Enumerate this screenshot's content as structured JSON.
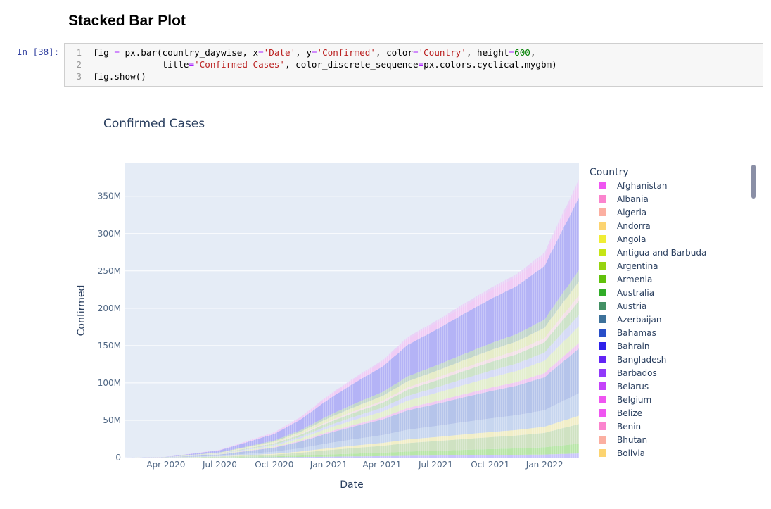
{
  "section_heading": "Stacked Bar Plot",
  "cell": {
    "prompt": "In [38]:",
    "line_numbers": [
      "1",
      "2",
      "3"
    ],
    "code": {
      "l1_a": "fig ",
      "l1_eq": "=",
      "l1_b": " px.bar(country_daywise, x",
      "l1_eq2": "=",
      "l1_s1": "'Date'",
      "l1_c": ", y",
      "l1_eq3": "=",
      "l1_s2": "'Confirmed'",
      "l1_d": ", color",
      "l1_eq4": "=",
      "l1_s3": "'Country'",
      "l1_e": ", height",
      "l1_eq5": "=",
      "l1_n": "600",
      "l1_f": ",",
      "l2_a": "             title",
      "l2_eq": "=",
      "l2_s": "'Confirmed Cases'",
      "l2_b": ", color_discrete_sequence",
      "l2_eq2": "=",
      "l2_c": "px.colors.cyclical.mygbm)",
      "l3": "fig.show()"
    }
  },
  "chart_data": {
    "type": "area",
    "title": "Confirmed Cases",
    "xlabel": "Date",
    "ylabel": "Confirmed",
    "ylim": [
      0,
      395000000
    ],
    "yticks": [
      {
        "value": 0,
        "label": "0"
      },
      {
        "value": 50000000,
        "label": "50M"
      },
      {
        "value": 100000000,
        "label": "100M"
      },
      {
        "value": 150000000,
        "label": "150M"
      },
      {
        "value": 200000000,
        "label": "200M"
      },
      {
        "value": 250000000,
        "label": "250M"
      },
      {
        "value": 300000000,
        "label": "300M"
      },
      {
        "value": 350000000,
        "label": "350M"
      }
    ],
    "xrange": [
      "2020-01-22",
      "2022-02-28"
    ],
    "xticks": [
      {
        "date": "2020-04-01",
        "label": "Apr 2020"
      },
      {
        "date": "2020-07-01",
        "label": "Jul 2020"
      },
      {
        "date": "2020-10-01",
        "label": "Oct 2020"
      },
      {
        "date": "2021-01-01",
        "label": "Jan 2021"
      },
      {
        "date": "2021-04-01",
        "label": "Apr 2021"
      },
      {
        "date": "2021-07-01",
        "label": "Jul 2021"
      },
      {
        "date": "2021-10-01",
        "label": "Oct 2021"
      },
      {
        "date": "2022-01-01",
        "label": "Jan 2022"
      }
    ],
    "x": [
      "2020-01-22",
      "2020-04-01",
      "2020-07-01",
      "2020-10-01",
      "2020-11-15",
      "2021-01-01",
      "2021-02-15",
      "2021-04-01",
      "2021-05-15",
      "2021-07-01",
      "2021-08-15",
      "2021-10-01",
      "2021-11-15",
      "2022-01-01",
      "2022-01-15",
      "2022-02-28"
    ],
    "total_confirmed": [
      0,
      1000000,
      10500000,
      34000000,
      55000000,
      84000000,
      108000000,
      130000000,
      162000000,
      183000000,
      205000000,
      227000000,
      246000000,
      275000000,
      300000000,
      373000000
    ],
    "legend": {
      "title": "Country",
      "position": "right",
      "items": [
        {
          "name": "Afghanistan",
          "color": "#ef55f1"
        },
        {
          "name": "Albania",
          "color": "#fb84ce"
        },
        {
          "name": "Algeria",
          "color": "#fbafa1"
        },
        {
          "name": "Andorra",
          "color": "#fcd471"
        },
        {
          "name": "Angola",
          "color": "#f0ed35"
        },
        {
          "name": "Antigua and Barbuda",
          "color": "#c6e516"
        },
        {
          "name": "Argentina",
          "color": "#96d310"
        },
        {
          "name": "Armenia",
          "color": "#61c10b"
        },
        {
          "name": "Australia",
          "color": "#31ac28"
        },
        {
          "name": "Austria",
          "color": "#439064"
        },
        {
          "name": "Azerbaijan",
          "color": "#3d719a"
        },
        {
          "name": "Bahamas",
          "color": "#284ec8"
        },
        {
          "name": "Bahrain",
          "color": "#2e21ea"
        },
        {
          "name": "Bangladesh",
          "color": "#6324f5"
        },
        {
          "name": "Barbados",
          "color": "#9139fa"
        },
        {
          "name": "Belarus",
          "color": "#c543fa"
        },
        {
          "name": "Belgium",
          "color": "#ef55f1"
        },
        {
          "name": "Belize",
          "color": "#ef55f1"
        },
        {
          "name": "Benin",
          "color": "#fb84ce"
        },
        {
          "name": "Bhutan",
          "color": "#fbafa1"
        },
        {
          "name": "Bolivia",
          "color": "#fcd471"
        }
      ]
    },
    "grid": true
  }
}
